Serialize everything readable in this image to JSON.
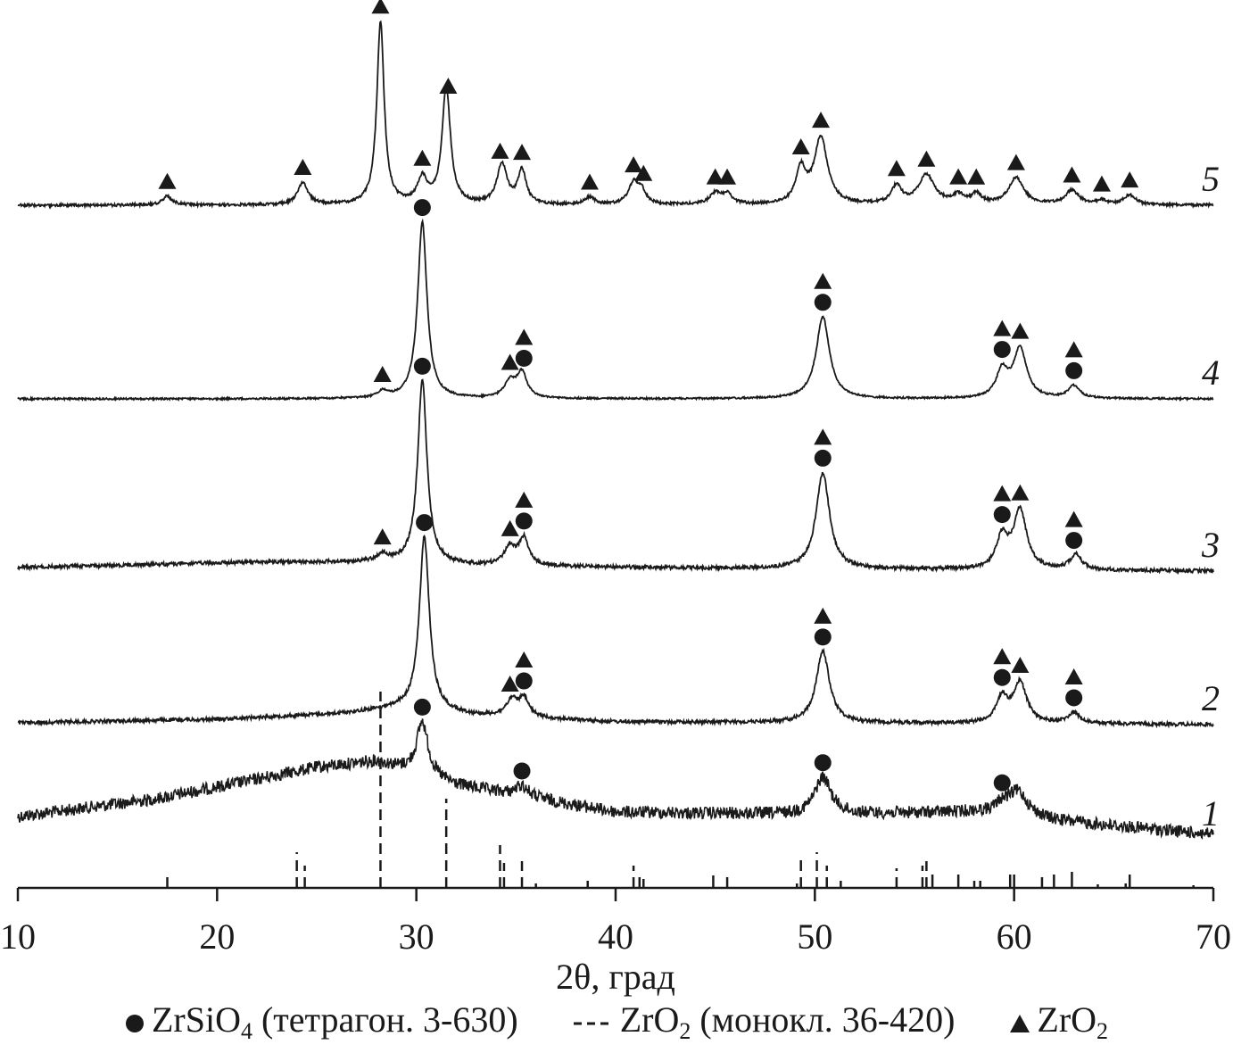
{
  "chart_data": {
    "type": "line",
    "xlabel": "2θ, град",
    "ylabel": "",
    "xlim": [
      10,
      70
    ],
    "xticks": [
      "10",
      "20",
      "30",
      "40",
      "50",
      "60",
      "70"
    ],
    "grid": false,
    "legend_position": "bottom",
    "legend": [
      {
        "symbol": "circle",
        "text": "ZrSiO",
        "sub": "4",
        "after": " (тетрагон. 3-630)"
      },
      {
        "symbol": "dashed-line",
        "text": "ZrO",
        "sub": "2",
        "after": " (монокл. 36-420)"
      },
      {
        "symbol": "triangle",
        "text": "ZrO",
        "sub": "2",
        "after": ""
      }
    ],
    "series": [
      {
        "name": "1",
        "noise": 7,
        "background": [
          [
            10,
            20
          ],
          [
            17,
            40
          ],
          [
            25,
            75
          ],
          [
            28,
            82
          ],
          [
            32,
            55
          ],
          [
            40,
            25
          ],
          [
            50,
            22
          ],
          [
            58,
            25
          ],
          [
            62,
            15
          ],
          [
            70,
            0
          ]
        ],
        "peaks": [
          [
            30.3,
            60,
            0.35
          ],
          [
            35.3,
            12,
            0.4
          ],
          [
            50.4,
            42,
            0.5
          ],
          [
            60.2,
            28,
            0.6
          ],
          [
            59.4,
            10,
            0.4
          ]
        ],
        "markers": [
          [
            30.3,
            [
              "circle"
            ]
          ],
          [
            35.3,
            [
              "circle"
            ]
          ],
          [
            50.4,
            [
              "circle"
            ]
          ],
          [
            59.4,
            [
              "circle"
            ]
          ]
        ]
      },
      {
        "name": "2",
        "noise": 2,
        "background": [
          [
            10,
            2
          ],
          [
            20,
            6
          ],
          [
            26,
            12
          ],
          [
            29,
            18
          ],
          [
            33,
            10
          ],
          [
            40,
            3
          ],
          [
            70,
            0
          ]
        ],
        "peaks": [
          [
            30.4,
            195,
            0.3
          ],
          [
            34.8,
            18,
            0.35
          ],
          [
            35.4,
            20,
            0.3
          ],
          [
            50.4,
            80,
            0.4
          ],
          [
            59.4,
            28,
            0.35
          ],
          [
            60.3,
            45,
            0.4
          ],
          [
            63.0,
            12,
            0.35
          ]
        ],
        "markers": [
          [
            30.4,
            [
              "circle"
            ]
          ],
          [
            34.7,
            [
              "triangle"
            ]
          ],
          [
            35.4,
            [
              "circle",
              "triangle"
            ]
          ],
          [
            50.4,
            [
              "circle",
              "triangle"
            ]
          ],
          [
            59.4,
            [
              "circle",
              "triangle"
            ]
          ],
          [
            60.3,
            [
              "triangle"
            ]
          ],
          [
            63.0,
            [
              "circle",
              "triangle"
            ]
          ]
        ]
      },
      {
        "name": "3",
        "noise": 2,
        "background": [
          [
            10,
            4
          ],
          [
            22,
            10
          ],
          [
            28,
            10
          ],
          [
            33,
            6
          ],
          [
            45,
            3
          ],
          [
            70,
            0
          ]
        ],
        "peaks": [
          [
            28.3,
            8,
            0.3
          ],
          [
            30.3,
            205,
            0.28
          ],
          [
            34.7,
            20,
            0.35
          ],
          [
            35.4,
            30,
            0.3
          ],
          [
            50.4,
            108,
            0.4
          ],
          [
            59.4,
            35,
            0.35
          ],
          [
            60.3,
            65,
            0.4
          ],
          [
            63.1,
            17,
            0.35
          ]
        ],
        "markers": [
          [
            28.3,
            [
              "triangle"
            ]
          ],
          [
            30.3,
            [
              "circle"
            ]
          ],
          [
            34.7,
            [
              "triangle"
            ]
          ],
          [
            35.4,
            [
              "circle",
              "triangle"
            ]
          ],
          [
            50.4,
            [
              "circle",
              "triangle"
            ]
          ],
          [
            59.4,
            [
              "circle",
              "triangle"
            ]
          ],
          [
            60.3,
            [
              "triangle"
            ]
          ],
          [
            63.0,
            [
              "circle",
              "triangle"
            ]
          ]
        ]
      },
      {
        "name": "4",
        "noise": 1,
        "background": [
          [
            10,
            0
          ],
          [
            70,
            0
          ]
        ],
        "peaks": [
          [
            28.3,
            7,
            0.3
          ],
          [
            30.3,
            198,
            0.28
          ],
          [
            34.7,
            18,
            0.35
          ],
          [
            35.3,
            28,
            0.3
          ],
          [
            50.4,
            92,
            0.4
          ],
          [
            59.4,
            30,
            0.35
          ],
          [
            60.3,
            55,
            0.4
          ],
          [
            63.0,
            14,
            0.35
          ]
        ],
        "markers": [
          [
            28.3,
            [
              "triangle"
            ]
          ],
          [
            30.3,
            [
              "circle"
            ]
          ],
          [
            34.7,
            [
              "triangle"
            ]
          ],
          [
            35.4,
            [
              "circle",
              "triangle"
            ]
          ],
          [
            50.4,
            [
              "circle",
              "triangle"
            ]
          ],
          [
            59.4,
            [
              "circle",
              "triangle"
            ]
          ],
          [
            60.3,
            [
              "triangle"
            ]
          ],
          [
            63.0,
            [
              "circle",
              "triangle"
            ]
          ]
        ]
      },
      {
        "name": "5",
        "noise": 1.5,
        "background": [
          [
            10,
            0
          ],
          [
            70,
            0
          ]
        ],
        "peaks": [
          [
            17.5,
            10,
            0.3
          ],
          [
            24.3,
            25,
            0.3
          ],
          [
            28.2,
            205,
            0.22
          ],
          [
            30.3,
            28,
            0.3
          ],
          [
            31.5,
            132,
            0.25
          ],
          [
            34.3,
            45,
            0.3
          ],
          [
            35.3,
            38,
            0.25
          ],
          [
            38.7,
            8,
            0.3
          ],
          [
            40.9,
            24,
            0.3
          ],
          [
            41.3,
            14,
            0.25
          ],
          [
            45.0,
            12,
            0.35
          ],
          [
            45.6,
            11,
            0.3
          ],
          [
            49.3,
            38,
            0.3
          ],
          [
            50.3,
            75,
            0.4
          ],
          [
            54.1,
            20,
            0.3
          ],
          [
            55.6,
            33,
            0.5
          ],
          [
            57.2,
            10,
            0.3
          ],
          [
            58.1,
            11,
            0.3
          ],
          [
            60.1,
            30,
            0.45
          ],
          [
            62.9,
            16,
            0.4
          ],
          [
            64.4,
            5,
            0.3
          ],
          [
            65.8,
            11,
            0.35
          ]
        ],
        "markers": [
          [
            17.5,
            [
              "triangle"
            ]
          ],
          [
            24.3,
            [
              "triangle"
            ]
          ],
          [
            28.2,
            [
              "triangle"
            ]
          ],
          [
            30.3,
            [
              "triangle"
            ]
          ],
          [
            31.6,
            [
              "triangle"
            ]
          ],
          [
            34.2,
            [
              "triangle"
            ]
          ],
          [
            35.3,
            [
              "triangle"
            ]
          ],
          [
            38.7,
            [
              "triangle"
            ]
          ],
          [
            40.9,
            [
              "triangle"
            ]
          ],
          [
            41.4,
            [
              "triangle"
            ]
          ],
          [
            45.0,
            [
              "triangle"
            ]
          ],
          [
            45.6,
            [
              "triangle"
            ]
          ],
          [
            49.3,
            [
              "triangle"
            ]
          ],
          [
            50.3,
            [
              "triangle"
            ]
          ],
          [
            54.1,
            [
              "triangle"
            ]
          ],
          [
            55.6,
            [
              "triangle"
            ]
          ],
          [
            57.2,
            [
              "triangle"
            ]
          ],
          [
            58.1,
            [
              "triangle"
            ]
          ],
          [
            60.1,
            [
              "triangle"
            ]
          ],
          [
            62.9,
            [
              "triangle"
            ]
          ],
          [
            64.4,
            [
              "triangle"
            ]
          ],
          [
            65.8,
            [
              "triangle"
            ]
          ]
        ]
      }
    ],
    "reference_lines": [
      [
        17.5,
        12
      ],
      [
        24.0,
        40
      ],
      [
        24.4,
        25
      ],
      [
        28.2,
        220
      ],
      [
        31.5,
        100
      ],
      [
        34.2,
        48
      ],
      [
        34.4,
        28
      ],
      [
        35.3,
        30
      ],
      [
        36.0,
        5
      ],
      [
        38.6,
        8
      ],
      [
        40.9,
        25
      ],
      [
        41.2,
        12
      ],
      [
        41.4,
        10
      ],
      [
        44.9,
        14
      ],
      [
        45.6,
        12
      ],
      [
        49.1,
        5
      ],
      [
        49.3,
        35
      ],
      [
        50.1,
        40
      ],
      [
        50.6,
        25
      ],
      [
        51.3,
        8
      ],
      [
        54.1,
        22
      ],
      [
        55.4,
        25
      ],
      [
        55.6,
        30
      ],
      [
        55.9,
        15
      ],
      [
        57.2,
        15
      ],
      [
        58.0,
        8
      ],
      [
        58.3,
        8
      ],
      [
        59.8,
        15
      ],
      [
        60.0,
        15
      ],
      [
        61.4,
        12
      ],
      [
        62.0,
        15
      ],
      [
        62.9,
        18
      ],
      [
        64.2,
        4
      ],
      [
        65.6,
        5
      ],
      [
        65.8,
        15
      ],
      [
        69.0,
        3
      ]
    ]
  }
}
